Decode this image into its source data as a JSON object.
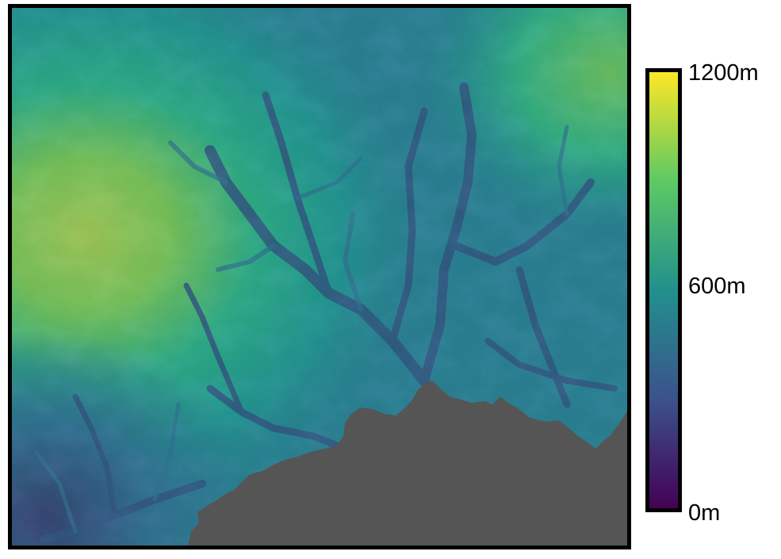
{
  "map": {
    "no_data_color": "#555555",
    "palette": "viridis"
  },
  "legend": {
    "min_label": "0m",
    "mid_label": "600m",
    "max_label": "1200m",
    "min_value": 0,
    "mid_value": 600,
    "max_value": 1200,
    "colors": [
      "#440154",
      "#3b528b",
      "#21908d",
      "#5dc963",
      "#fde725"
    ]
  }
}
